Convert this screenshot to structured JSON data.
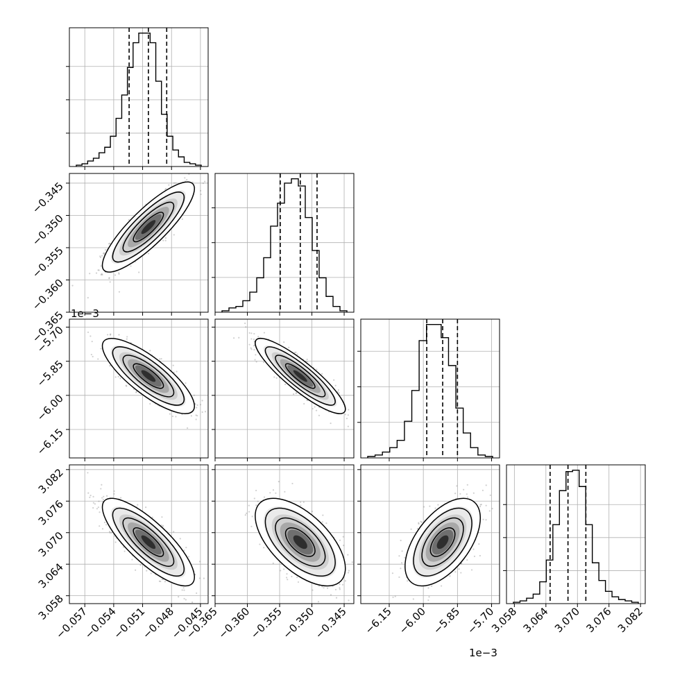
{
  "chart_data": {
    "type": "corner",
    "params": [
      {
        "ticks": [
          -0.057,
          -0.054,
          -0.051,
          -0.048,
          -0.045
        ],
        "tick_labels": [
          "−0.057",
          "−0.054",
          "−0.051",
          "−0.048",
          "−0.045"
        ],
        "range": [
          -0.0586,
          -0.0442
        ],
        "quantiles": [
          -0.0524,
          -0.0504,
          -0.0485
        ]
      },
      {
        "ticks": [
          -0.365,
          -0.36,
          -0.355,
          -0.35,
          -0.345
        ],
        "tick_labels": [
          "−0.365",
          "−0.360",
          "−0.355",
          "−0.350",
          "−0.345"
        ],
        "range": [
          -0.365,
          -0.3435
        ],
        "quantiles": [
          -0.3549,
          -0.3518,
          -0.3492
        ]
      },
      {
        "ticks": [
          -6.15,
          -6.0,
          -5.85,
          -5.7
        ],
        "tick_labels": [
          "−6.15",
          "−6.00",
          "−5.85",
          "−5.70"
        ],
        "range": [
          -6.275,
          -5.665
        ],
        "quantiles": [
          -5.985,
          -5.915,
          -5.85
        ],
        "offset_label": "1e−3"
      },
      {
        "ticks": [
          3.058,
          3.064,
          3.07,
          3.076,
          3.082
        ],
        "tick_labels": [
          "3.058",
          "3.064",
          "3.070",
          "3.076",
          "3.082"
        ],
        "range": [
          3.0565,
          3.0829
        ],
        "quantiles": [
          3.0648,
          3.0682,
          3.0716
        ]
      }
    ],
    "histograms": [
      [
        1,
        2,
        4,
        6,
        10,
        14,
        22,
        35,
        52,
        72,
        90,
        97,
        97,
        90,
        62,
        38,
        22,
        12,
        7,
        3,
        2,
        1
      ],
      [
        1,
        3,
        4,
        8,
        14,
        24,
        38,
        60,
        76,
        90,
        93,
        88,
        66,
        43,
        24,
        11,
        4,
        1
      ],
      [
        1,
        2,
        4,
        7,
        12,
        25,
        46,
        80,
        91,
        91,
        82,
        63,
        34,
        17,
        7,
        2,
        1
      ],
      [
        1,
        2,
        4,
        7,
        16,
        32,
        58,
        83,
        97,
        98,
        86,
        58,
        30,
        17,
        9,
        5,
        3,
        2,
        1
      ]
    ],
    "correlations": {
      "1,0": 0.85,
      "2,0": -0.8,
      "2,1": -0.88,
      "3,0": -0.8,
      "3,1": -0.6,
      "3,2": 0.55
    },
    "offset_labels": [
      "1e−3",
      "1e−3"
    ],
    "grid": true
  }
}
